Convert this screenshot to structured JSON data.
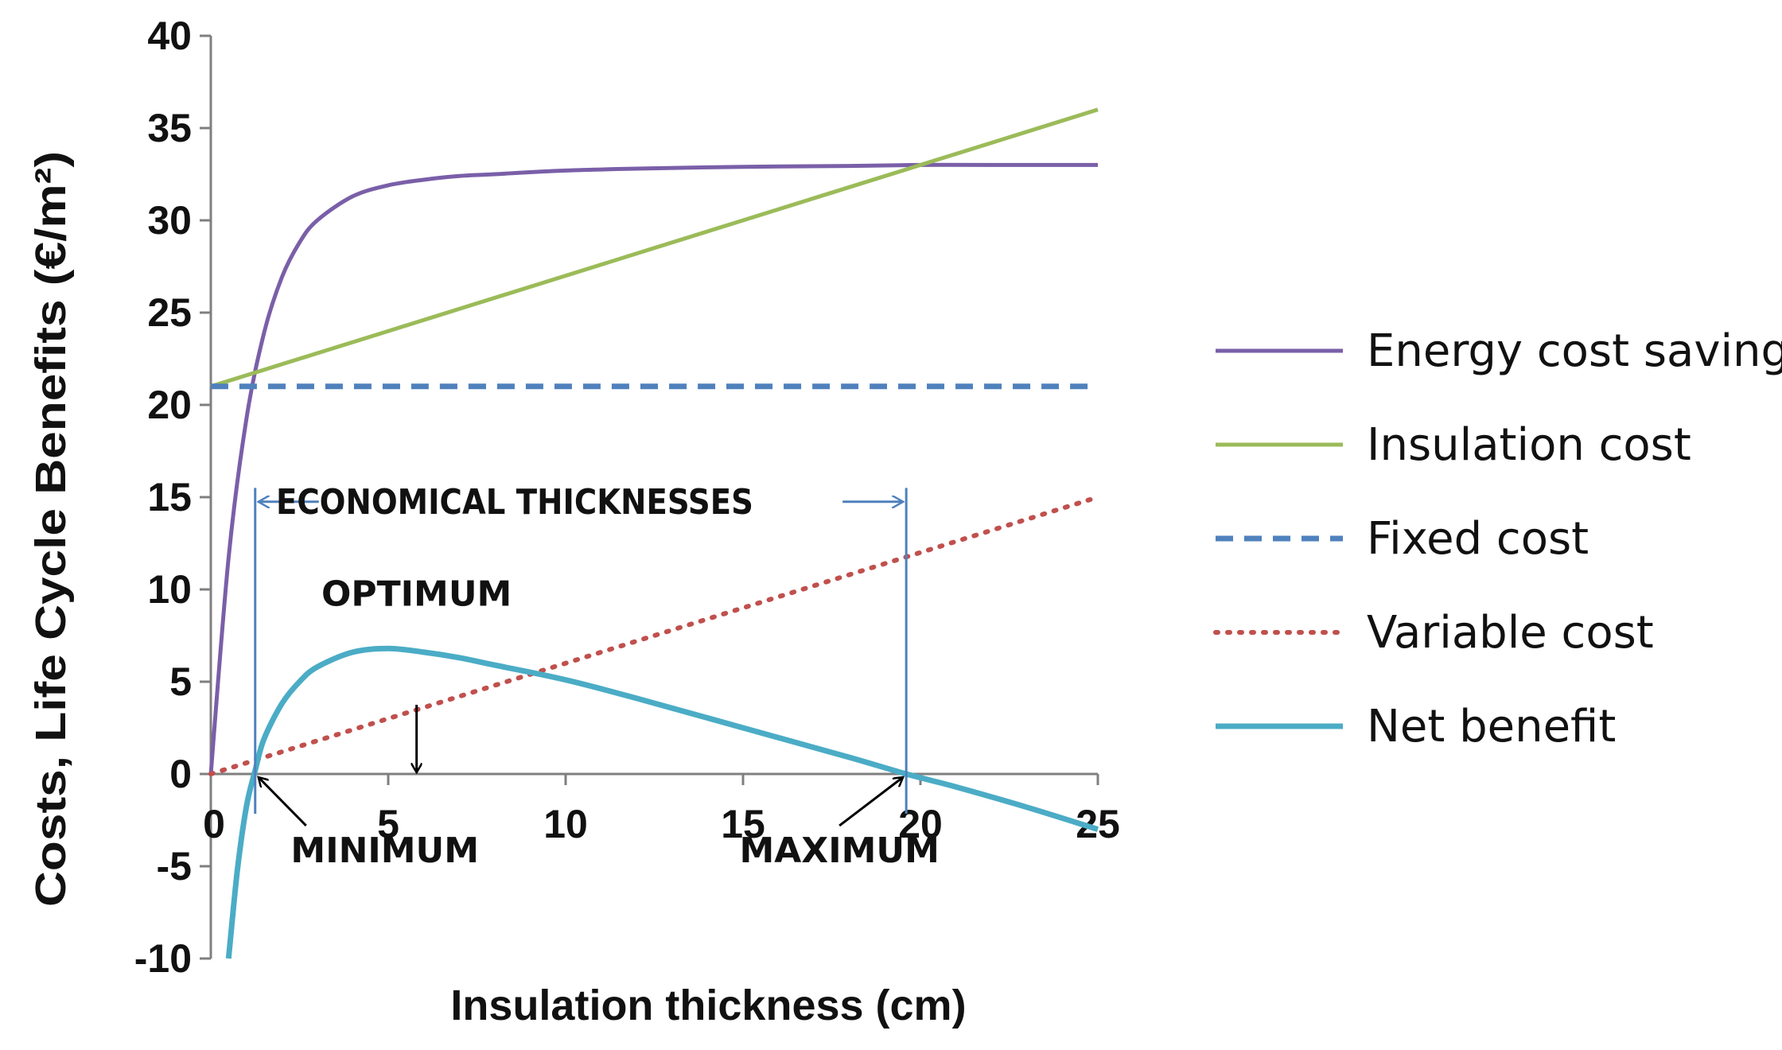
{
  "chart_data": {
    "type": "line",
    "title": "",
    "xlabel": "Insulation thickness (cm)",
    "ylabel": "Costs, Life Cycle Benefits (€/m²)",
    "xlim": [
      0,
      25
    ],
    "ylim": [
      -10,
      40
    ],
    "x_ticks": [
      "0",
      "5",
      "10",
      "15",
      "20",
      "25"
    ],
    "y_ticks": [
      "-10",
      "-5",
      "0",
      "5",
      "10",
      "15",
      "20",
      "25",
      "30",
      "35",
      "40"
    ],
    "grid": false,
    "legend_position": "right",
    "series": [
      {
        "name": "Energy cost savings",
        "color": "#7a5fa8",
        "style": "solid",
        "x": [
          0,
          0.5,
          1,
          1.5,
          2,
          2.5,
          3,
          4,
          5,
          6,
          7,
          8,
          10,
          12,
          15,
          18,
          20,
          22,
          25
        ],
        "values": [
          0,
          11.7,
          19.2,
          23.9,
          26.9,
          28.8,
          30.0,
          31.3,
          31.9,
          32.2,
          32.4,
          32.5,
          32.7,
          32.8,
          32.9,
          32.95,
          33.0,
          33.0,
          33.0
        ]
      },
      {
        "name": "Insulation cost",
        "color": "#9bbb59",
        "style": "solid",
        "x": [
          0,
          5,
          10,
          15,
          20,
          25
        ],
        "values": [
          21,
          24,
          27,
          30,
          33,
          36
        ]
      },
      {
        "name": "Fixed cost",
        "color": "#4f81bd",
        "style": "dashed",
        "x": [
          0,
          25
        ],
        "values": [
          21,
          21
        ]
      },
      {
        "name": "Variable cost",
        "color": "#c0504d",
        "style": "dotted",
        "x": [
          0,
          5,
          10,
          15,
          20,
          25
        ],
        "values": [
          0,
          3,
          6,
          9,
          12,
          15
        ]
      },
      {
        "name": "Net benefit",
        "color": "#4bacc6",
        "style": "solid",
        "x": [
          0.5,
          0.75,
          1,
          1.25,
          1.5,
          2,
          2.5,
          3,
          4,
          5,
          6,
          7,
          8,
          10,
          12,
          15,
          18,
          19.6,
          21,
          23,
          25
        ],
        "values": [
          -10,
          -5.2,
          -1.8,
          0.2,
          1.9,
          3.8,
          5.0,
          5.8,
          6.6,
          6.8,
          6.6,
          6.3,
          5.9,
          5.1,
          4.1,
          2.5,
          0.9,
          0.0,
          -0.7,
          -1.8,
          -3.0
        ]
      }
    ],
    "annotations": [
      {
        "label": "ECONOMICAL THICKNESSES",
        "kind": "range",
        "x_start": 1.25,
        "x_end": 19.6
      },
      {
        "label": "OPTIMUM",
        "kind": "arrow",
        "x": 5.8,
        "y": 0
      },
      {
        "label": "MINIMUM",
        "kind": "arrow",
        "x": 1.25,
        "y": 0
      },
      {
        "label": "MAXIMUM",
        "kind": "arrow",
        "x": 19.6,
        "y": 0
      }
    ]
  }
}
